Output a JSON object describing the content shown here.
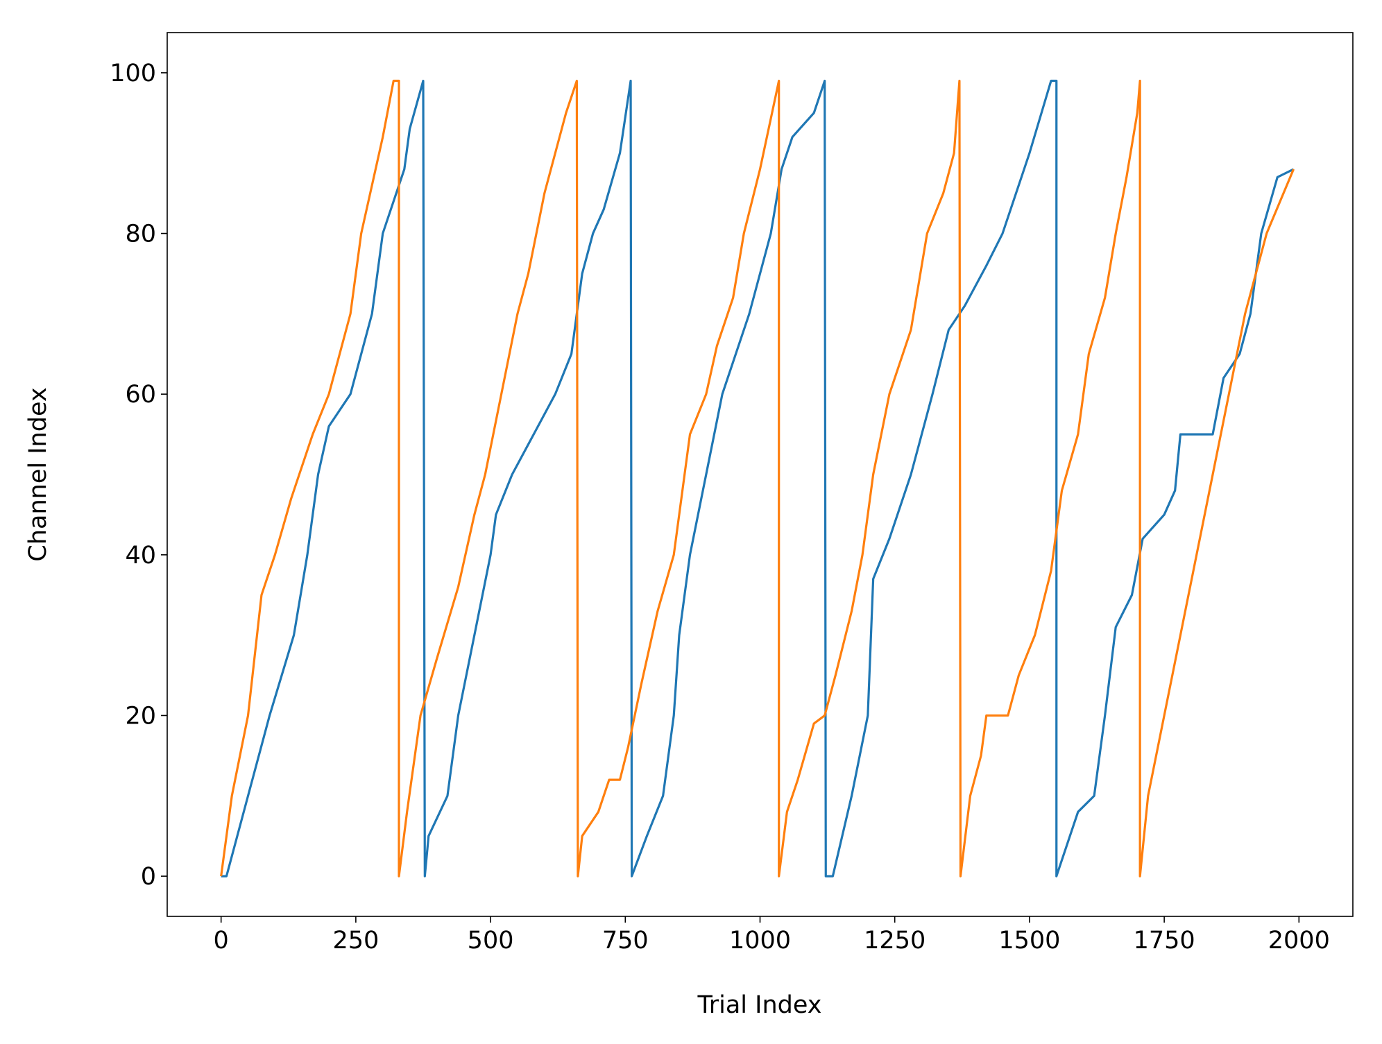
{
  "chart_data": {
    "type": "line",
    "x_label": "Trial Index",
    "y_label": "Channel Index",
    "xlim": [
      -100,
      2100
    ],
    "ylim": [
      -5,
      105
    ],
    "xticks": [
      0,
      250,
      500,
      750,
      1000,
      1250,
      1500,
      1750,
      2000
    ],
    "yticks": [
      0,
      20,
      40,
      60,
      80,
      100
    ],
    "series": [
      {
        "color": "#1f77b4",
        "x": [
          0,
          10,
          50,
          90,
          135,
          160,
          180,
          200,
          240,
          280,
          300,
          340,
          350,
          375,
          378,
          385,
          420,
          440,
          470,
          500,
          510,
          540,
          580,
          620,
          650,
          670,
          690,
          710,
          740,
          760,
          762,
          790,
          820,
          840,
          850,
          870,
          900,
          930,
          980,
          1020,
          1040,
          1060,
          1100,
          1120,
          1122,
          1135,
          1170,
          1200,
          1210,
          1240,
          1280,
          1320,
          1350,
          1380,
          1420,
          1450,
          1500,
          1540,
          1550,
          1550,
          1590,
          1620,
          1640,
          1660,
          1690,
          1710,
          1750,
          1770,
          1780,
          1840,
          1860,
          1890,
          1910,
          1930,
          1960,
          1990
        ],
        "values": [
          0,
          0,
          10,
          20,
          30,
          40,
          50,
          56,
          60,
          70,
          80,
          88,
          93,
          99,
          0,
          5,
          10,
          20,
          30,
          40,
          45,
          50,
          55,
          60,
          65,
          75,
          80,
          83,
          90,
          99,
          0,
          5,
          10,
          20,
          30,
          40,
          50,
          60,
          70,
          80,
          88,
          92,
          95,
          99,
          0,
          0,
          10,
          20,
          37,
          42,
          50,
          60,
          68,
          71,
          76,
          80,
          90,
          99,
          99,
          0,
          8,
          10,
          20,
          31,
          35,
          42,
          45,
          48,
          55,
          55,
          62,
          65,
          70,
          80,
          87,
          88
        ]
      },
      {
        "color": "#ff7f0e",
        "x": [
          0,
          20,
          50,
          75,
          100,
          130,
          170,
          200,
          240,
          260,
          280,
          300,
          320,
          330,
          330,
          345,
          370,
          400,
          440,
          470,
          490,
          520,
          550,
          570,
          600,
          620,
          640,
          660,
          662,
          670,
          700,
          720,
          740,
          755,
          780,
          810,
          840,
          850,
          870,
          900,
          920,
          950,
          970,
          1000,
          1035,
          1035,
          1050,
          1070,
          1100,
          1120,
          1140,
          1170,
          1190,
          1210,
          1240,
          1280,
          1310,
          1340,
          1360,
          1370,
          1372,
          1390,
          1410,
          1420,
          1460,
          1480,
          1510,
          1540,
          1560,
          1590,
          1610,
          1640,
          1660,
          1680,
          1700,
          1705,
          1705,
          1720,
          1750,
          1780,
          1810,
          1840,
          1870,
          1900,
          1940,
          1990
        ],
        "values": [
          0,
          10,
          20,
          35,
          40,
          47,
          55,
          60,
          70,
          80,
          86,
          92,
          99,
          99,
          0,
          8,
          20,
          27,
          36,
          45,
          50,
          60,
          70,
          75,
          85,
          90,
          95,
          99,
          0,
          5,
          8,
          12,
          12,
          16,
          24,
          33,
          40,
          45,
          55,
          60,
          66,
          72,
          80,
          88,
          99,
          0,
          8,
          12,
          19,
          20,
          25,
          33,
          40,
          50,
          60,
          68,
          80,
          85,
          90,
          99,
          0,
          10,
          15,
          20,
          20,
          25,
          30,
          38,
          48,
          55,
          65,
          72,
          80,
          87,
          95,
          99,
          0,
          10,
          20,
          30,
          40,
          50,
          60,
          70,
          80,
          88
        ]
      }
    ]
  }
}
